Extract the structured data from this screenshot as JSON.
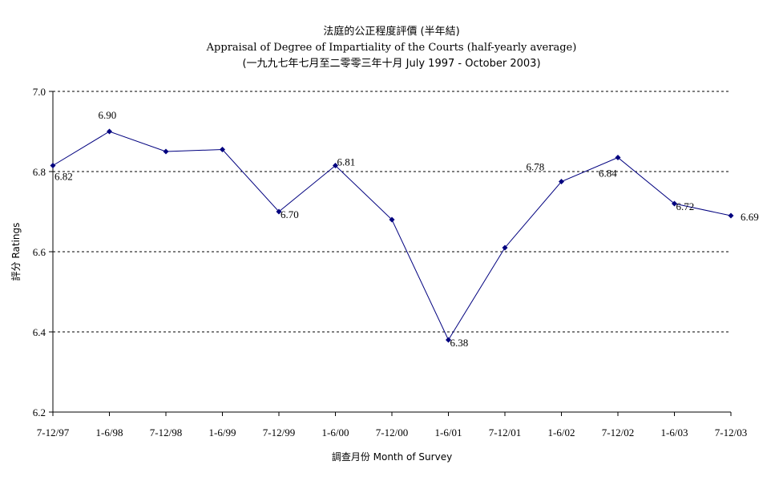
{
  "chart_data": {
    "type": "line",
    "title": "法庭的公正程度評價 (半年結)",
    "subtitle": "Appraisal of Degree of Impartiality of the Courts (half-yearly average)",
    "period": "(一九九七年七月至二零零三年十月 July 1997 - October 2003)",
    "xlabel": "調查月份 Month of Survey",
    "ylabel": "評分 Ratings",
    "ylim": [
      6.2,
      7.0
    ],
    "yticks": [
      "6.2",
      "6.4",
      "6.6",
      "6.8",
      "7.0"
    ],
    "grid": "horizontal-dashed",
    "categories": [
      "7-12/97",
      "1-6/98",
      "7-12/98",
      "1-6/99",
      "7-12/99",
      "1-6/00",
      "7-12/00",
      "1-6/01",
      "7-12/01",
      "1-6/02",
      "7-12/02",
      "1-6/03",
      "7-12/03"
    ],
    "series": [
      {
        "color": "#00007f",
        "values": [
          6.815,
          6.9,
          6.85,
          6.855,
          6.7,
          6.815,
          6.68,
          6.38,
          6.61,
          6.775,
          6.835,
          6.72,
          6.69
        ],
        "labels": [
          "6.82",
          "6.90",
          "",
          "",
          "6.70",
          "6.81",
          "",
          "6.38",
          "",
          "6.78",
          "6.84",
          "6.72",
          "6.69"
        ]
      }
    ]
  }
}
